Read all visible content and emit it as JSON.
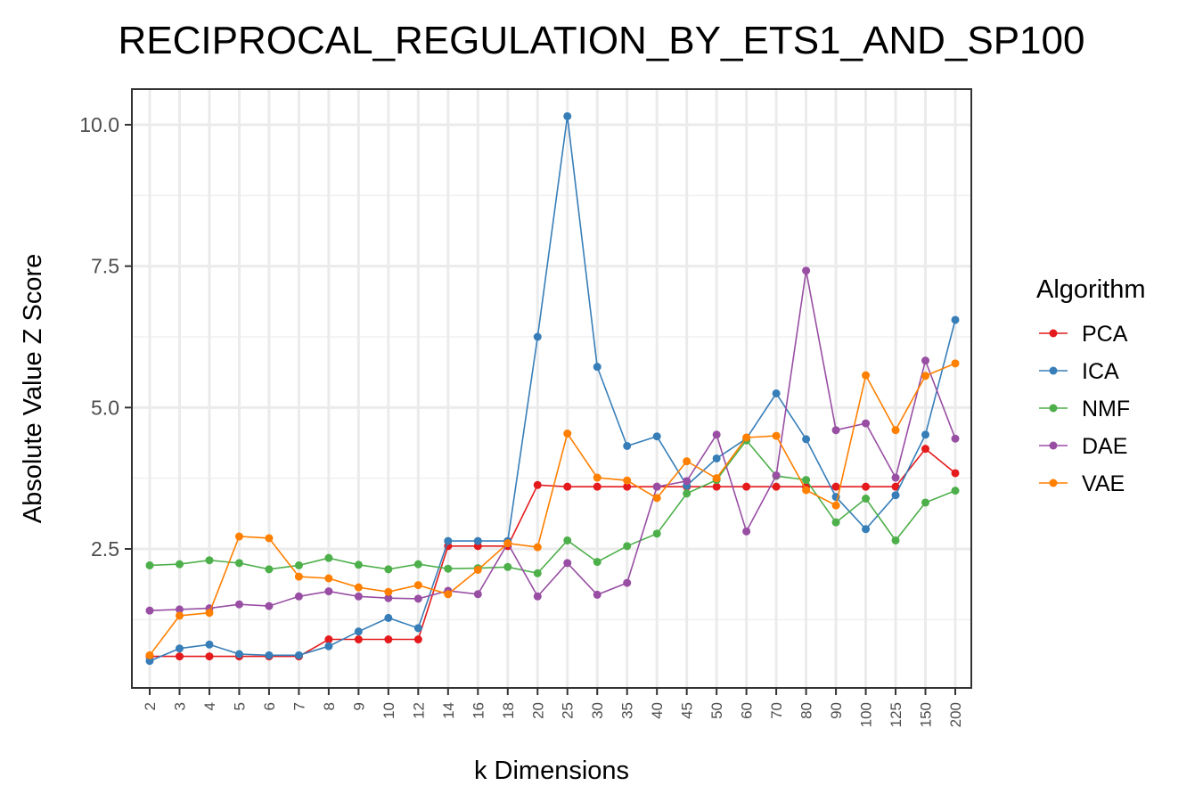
{
  "chart_data": {
    "type": "line",
    "title": "RECIPROCAL_REGULATION_BY_ETS1_AND_SP100",
    "xlabel": "k Dimensions",
    "ylabel": "Absolute Value Z Score",
    "ylim": [
      0.0,
      10.6
    ],
    "yticks": [
      "2.5",
      "5.0",
      "7.5",
      "10.0"
    ],
    "grid": true,
    "legend_title": "Algorithm",
    "legend_position": "right",
    "categories": [
      "2",
      "3",
      "4",
      "5",
      "6",
      "7",
      "8",
      "9",
      "10",
      "12",
      "14",
      "16",
      "18",
      "20",
      "25",
      "30",
      "35",
      "40",
      "45",
      "50",
      "60",
      "70",
      "80",
      "90",
      "100",
      "125",
      "150",
      "200"
    ],
    "series": [
      {
        "name": "PCA",
        "color": "#e41a1c",
        "values": [
          0.6,
          0.6,
          0.6,
          0.6,
          0.6,
          0.6,
          0.9,
          0.9,
          0.9,
          0.9,
          2.55,
          2.55,
          2.55,
          3.63,
          3.6,
          3.6,
          3.6,
          3.6,
          3.6,
          3.6,
          3.6,
          3.6,
          3.6,
          3.6,
          3.6,
          3.6,
          4.27,
          3.84
        ]
      },
      {
        "name": "ICA",
        "color": "#377eb8",
        "values": [
          0.52,
          0.74,
          0.81,
          0.64,
          0.62,
          0.62,
          0.78,
          1.04,
          1.28,
          1.1,
          2.64,
          2.64,
          2.64,
          6.25,
          10.15,
          5.72,
          4.32,
          4.49,
          3.62,
          4.1,
          4.45,
          5.25,
          4.44,
          3.42,
          2.85,
          3.45,
          4.52,
          6.55
        ]
      },
      {
        "name": "NMF",
        "color": "#4daf4a",
        "values": [
          2.21,
          2.23,
          2.3,
          2.25,
          2.14,
          2.21,
          2.34,
          2.22,
          2.14,
          2.23,
          2.15,
          2.16,
          2.18,
          2.07,
          2.65,
          2.27,
          2.55,
          2.77,
          3.48,
          3.72,
          4.42,
          3.79,
          3.72,
          2.97,
          3.39,
          2.65,
          3.32,
          3.53
        ]
      },
      {
        "name": "DAE",
        "color": "#984ea3",
        "values": [
          1.41,
          1.43,
          1.45,
          1.52,
          1.49,
          1.66,
          1.75,
          1.66,
          1.63,
          1.62,
          1.76,
          1.7,
          2.6,
          1.66,
          2.25,
          1.69,
          1.9,
          3.6,
          3.7,
          4.52,
          2.81,
          3.8,
          7.42,
          4.6,
          4.72,
          3.76,
          5.83,
          4.45
        ]
      },
      {
        "name": "VAE",
        "color": "#ff7f00",
        "values": [
          0.62,
          1.32,
          1.37,
          2.72,
          2.69,
          2.01,
          1.98,
          1.82,
          1.74,
          1.86,
          1.7,
          2.13,
          2.6,
          2.53,
          4.54,
          3.76,
          3.71,
          3.4,
          4.05,
          3.75,
          4.47,
          4.5,
          3.54,
          3.27,
          5.57,
          4.6,
          5.56,
          5.78
        ]
      }
    ]
  }
}
